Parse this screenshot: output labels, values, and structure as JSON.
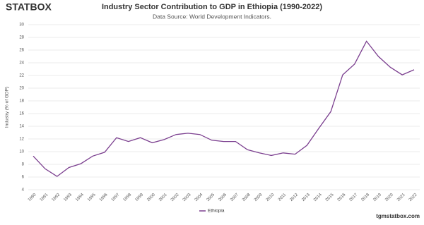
{
  "logo": "STATBOX",
  "footer": "tgmstatbox.com",
  "chart_data": {
    "type": "line",
    "title": "Industry Sector Contribution to GDP in Ethiopia (1990-2022)",
    "subtitle": "Data Source: World Development Indicators.",
    "y_label": "Industry (% of GDP)",
    "categories": [
      "1990",
      "1991",
      "1992",
      "1993",
      "1994",
      "1995",
      "1996",
      "1997",
      "1998",
      "1999",
      "2000",
      "2001",
      "2002",
      "2003",
      "2004",
      "2005",
      "2006",
      "2007",
      "2008",
      "2009",
      "2010",
      "2011",
      "2012",
      "2013",
      "2014",
      "2015",
      "2016",
      "2017",
      "2018",
      "2019",
      "2020",
      "2021",
      "2022"
    ],
    "series": [
      {
        "name": "Ethiopia",
        "color": "#7b3f8f",
        "values": [
          9.3,
          7.3,
          6.1,
          7.5,
          8.1,
          9.3,
          9.9,
          12.2,
          11.6,
          12.2,
          11.4,
          11.9,
          12.7,
          12.9,
          12.7,
          11.8,
          11.6,
          11.6,
          10.3,
          9.8,
          9.4,
          9.8,
          9.6,
          11.0,
          13.7,
          16.3,
          22.1,
          23.8,
          27.4,
          25.0,
          23.3,
          22.1,
          22.9
        ]
      }
    ],
    "ylim": [
      4,
      30
    ],
    "yticks": [
      4,
      6,
      8,
      10,
      12,
      14,
      16,
      18,
      20,
      22,
      24,
      26,
      28,
      30
    ],
    "grid": true,
    "legend": "bottom"
  }
}
